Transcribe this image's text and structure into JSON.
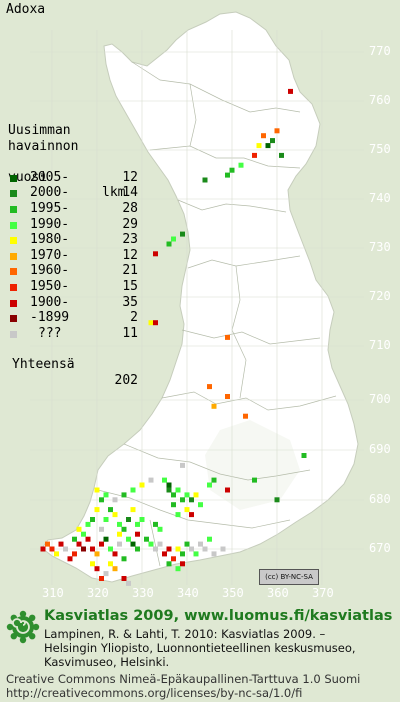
{
  "species": "Adoxa",
  "legend": {
    "heading": [
      "Uusimman",
      "havainnon",
      "vuosi"
    ],
    "count_heading": "lkm",
    "items": [
      {
        "label": "2005-",
        "count": "12",
        "color": "#006400"
      },
      {
        "label": "2000-",
        "count": "14",
        "color": "#1a8a1a"
      },
      {
        "label": "1995-",
        "count": "28",
        "color": "#22bb22"
      },
      {
        "label": "1990-",
        "count": "29",
        "color": "#44ff44"
      },
      {
        "label": "1980-",
        "count": "23",
        "color": "#ffff00"
      },
      {
        "label": "1970-",
        "count": "12",
        "color": "#ffaa00"
      },
      {
        "label": "1960-",
        "count": "21",
        "color": "#ff6600"
      },
      {
        "label": "1950-",
        "count": "15",
        "color": "#ee2200"
      },
      {
        "label": "1900-",
        "count": "35",
        "color": "#cc0000"
      },
      {
        "label": "-1899",
        "count": "2",
        "color": "#880000"
      },
      {
        "label": "???",
        "count": "11",
        "color": "#c8c8c8"
      }
    ],
    "total_label": "Yhteensä",
    "total_count": "202"
  },
  "axes": {
    "y_labels": [
      "770",
      "760",
      "750",
      "740",
      "730",
      "720",
      "710",
      "700",
      "690",
      "680",
      "670"
    ],
    "x_labels": [
      "310",
      "320",
      "330",
      "340",
      "350",
      "360",
      "370"
    ]
  },
  "license_badge": "(cc) BY-NC-SA",
  "footer": {
    "title": "Kasviatlas 2009, www.luomus.fi/kasviatlas",
    "citation": [
      "Lampinen, R. & Lahti, T. 2010: Kasviatlas 2009. –",
      "Helsingin Yliopisto, Luonnontieteellinen keskusmuseo,",
      "Kasvimuseo, Helsinki."
    ],
    "license": [
      "Creative Commons Nimeä-Epäkaupallinen-Tarttuva 1.0 Suomi",
      "http://creativecommons.org/licenses/by-nc-sa/1.0/fi"
    ]
  },
  "observations": [
    {
      "e": 363,
      "n": 763,
      "c": 8
    },
    {
      "e": 358,
      "n": 752,
      "c": 0
    },
    {
      "e": 359,
      "n": 753,
      "c": 1
    },
    {
      "e": 361,
      "n": 750,
      "c": 1
    },
    {
      "e": 357,
      "n": 754,
      "c": 6
    },
    {
      "e": 356,
      "n": 752,
      "c": 4
    },
    {
      "e": 355,
      "n": 750,
      "c": 7
    },
    {
      "e": 360,
      "n": 755,
      "c": 6
    },
    {
      "e": 352,
      "n": 748,
      "c": 3
    },
    {
      "e": 350,
      "n": 747,
      "c": 2
    },
    {
      "e": 349,
      "n": 746,
      "c": 2
    },
    {
      "e": 344,
      "n": 745,
      "c": 1
    },
    {
      "e": 339,
      "n": 734,
      "c": 1
    },
    {
      "e": 337,
      "n": 733,
      "c": 3
    },
    {
      "e": 336,
      "n": 732,
      "c": 2
    },
    {
      "e": 333,
      "n": 730,
      "c": 8
    },
    {
      "e": 332,
      "n": 716,
      "c": 4
    },
    {
      "e": 333,
      "n": 716,
      "c": 8
    },
    {
      "e": 349,
      "n": 713,
      "c": 6
    },
    {
      "e": 345,
      "n": 703,
      "c": 6
    },
    {
      "e": 349,
      "n": 701,
      "c": 6
    },
    {
      "e": 346,
      "n": 699,
      "c": 5
    },
    {
      "e": 353,
      "n": 697,
      "c": 6
    },
    {
      "e": 366,
      "n": 689,
      "c": 2
    },
    {
      "e": 355,
      "n": 684,
      "c": 2
    },
    {
      "e": 360,
      "n": 680,
      "c": 1
    },
    {
      "e": 339,
      "n": 687,
      "c": 10
    },
    {
      "e": 308,
      "n": 670,
      "c": 8
    },
    {
      "e": 309,
      "n": 671,
      "c": 6
    },
    {
      "e": 310,
      "n": 670,
      "c": 7
    },
    {
      "e": 311,
      "n": 669,
      "c": 4
    },
    {
      "e": 312,
      "n": 671,
      "c": 8
    },
    {
      "e": 313,
      "n": 670,
      "c": 10
    },
    {
      "e": 314,
      "n": 668,
      "c": 8
    },
    {
      "e": 315,
      "n": 669,
      "c": 7
    },
    {
      "e": 316,
      "n": 671,
      "c": 8
    },
    {
      "e": 317,
      "n": 670,
      "c": 9
    },
    {
      "e": 318,
      "n": 672,
      "c": 8
    },
    {
      "e": 319,
      "n": 670,
      "c": 8
    },
    {
      "e": 320,
      "n": 669,
      "c": 5
    },
    {
      "e": 321,
      "n": 671,
      "c": 8
    },
    {
      "e": 322,
      "n": 672,
      "c": 0
    },
    {
      "e": 323,
      "n": 670,
      "c": 3
    },
    {
      "e": 324,
      "n": 669,
      "c": 8
    },
    {
      "e": 325,
      "n": 671,
      "c": 10
    },
    {
      "e": 326,
      "n": 668,
      "c": 2
    },
    {
      "e": 327,
      "n": 672,
      "c": 3
    },
    {
      "e": 328,
      "n": 671,
      "c": 0
    },
    {
      "e": 329,
      "n": 670,
      "c": 2
    },
    {
      "e": 319,
      "n": 667,
      "c": 4
    },
    {
      "e": 320,
      "n": 666,
      "c": 8
    },
    {
      "e": 322,
      "n": 665,
      "c": 10
    },
    {
      "e": 324,
      "n": 666,
      "c": 5
    },
    {
      "e": 326,
      "n": 664,
      "c": 8
    },
    {
      "e": 327,
      "n": 663,
      "c": 10
    },
    {
      "e": 321,
      "n": 664,
      "c": 7
    },
    {
      "e": 323,
      "n": 667,
      "c": 4
    },
    {
      "e": 318,
      "n": 675,
      "c": 3
    },
    {
      "e": 319,
      "n": 676,
      "c": 2
    },
    {
      "e": 320,
      "n": 678,
      "c": 4
    },
    {
      "e": 321,
      "n": 674,
      "c": 10
    },
    {
      "e": 322,
      "n": 676,
      "c": 3
    },
    {
      "e": 323,
      "n": 678,
      "c": 2
    },
    {
      "e": 324,
      "n": 677,
      "c": 4
    },
    {
      "e": 325,
      "n": 675,
      "c": 3
    },
    {
      "e": 326,
      "n": 674,
      "c": 2
    },
    {
      "e": 327,
      "n": 676,
      "c": 1
    },
    {
      "e": 328,
      "n": 678,
      "c": 4
    },
    {
      "e": 329,
      "n": 675,
      "c": 3
    },
    {
      "e": 321,
      "n": 680,
      "c": 2
    },
    {
      "e": 322,
      "n": 681,
      "c": 3
    },
    {
      "e": 320,
      "n": 682,
      "c": 4
    },
    {
      "e": 324,
      "n": 680,
      "c": 10
    },
    {
      "e": 326,
      "n": 681,
      "c": 2
    },
    {
      "e": 328,
      "n": 682,
      "c": 3
    },
    {
      "e": 330,
      "n": 683,
      "c": 4
    },
    {
      "e": 332,
      "n": 684,
      "c": 10
    },
    {
      "e": 335,
      "n": 684,
      "c": 3
    },
    {
      "e": 336,
      "n": 683,
      "c": 0
    },
    {
      "e": 336,
      "n": 682,
      "c": 1
    },
    {
      "e": 337,
      "n": 681,
      "c": 2
    },
    {
      "e": 338,
      "n": 682,
      "c": 3
    },
    {
      "e": 339,
      "n": 680,
      "c": 2
    },
    {
      "e": 340,
      "n": 681,
      "c": 3
    },
    {
      "e": 341,
      "n": 680,
      "c": 1
    },
    {
      "e": 342,
      "n": 681,
      "c": 4
    },
    {
      "e": 343,
      "n": 679,
      "c": 3
    },
    {
      "e": 340,
      "n": 678,
      "c": 4
    },
    {
      "e": 341,
      "n": 677,
      "c": 8
    },
    {
      "e": 338,
      "n": 677,
      "c": 3
    },
    {
      "e": 337,
      "n": 679,
      "c": 2
    },
    {
      "e": 345,
      "n": 683,
      "c": 3
    },
    {
      "e": 346,
      "n": 684,
      "c": 2
    },
    {
      "e": 349,
      "n": 682,
      "c": 8
    },
    {
      "e": 331,
      "n": 672,
      "c": 2
    },
    {
      "e": 332,
      "n": 671,
      "c": 3
    },
    {
      "e": 333,
      "n": 670,
      "c": 10
    },
    {
      "e": 334,
      "n": 671,
      "c": 10
    },
    {
      "e": 335,
      "n": 669,
      "c": 8
    },
    {
      "e": 336,
      "n": 670,
      "c": 8
    },
    {
      "e": 337,
      "n": 668,
      "c": 7
    },
    {
      "e": 338,
      "n": 670,
      "c": 4
    },
    {
      "e": 339,
      "n": 669,
      "c": 2
    },
    {
      "e": 340,
      "n": 671,
      "c": 2
    },
    {
      "e": 341,
      "n": 670,
      "c": 10
    },
    {
      "e": 342,
      "n": 669,
      "c": 3
    },
    {
      "e": 343,
      "n": 671,
      "c": 10
    },
    {
      "e": 344,
      "n": 670,
      "c": 10
    },
    {
      "e": 345,
      "n": 672,
      "c": 3
    },
    {
      "e": 346,
      "n": 669,
      "c": 10
    },
    {
      "e": 339,
      "n": 667,
      "c": 8
    },
    {
      "e": 338,
      "n": 666,
      "c": 3
    },
    {
      "e": 336,
      "n": 667,
      "c": 2
    },
    {
      "e": 348,
      "n": 670,
      "c": 10
    },
    {
      "e": 334,
      "n": 674,
      "c": 3
    },
    {
      "e": 333,
      "n": 675,
      "c": 2
    },
    {
      "e": 330,
      "n": 676,
      "c": 3
    },
    {
      "e": 329,
      "n": 673,
      "c": 8
    },
    {
      "e": 325,
      "n": 673,
      "c": 4
    },
    {
      "e": 317,
      "n": 673,
      "c": 3
    },
    {
      "e": 316,
      "n": 674,
      "c": 4
    },
    {
      "e": 315,
      "n": 672,
      "c": 2
    }
  ]
}
